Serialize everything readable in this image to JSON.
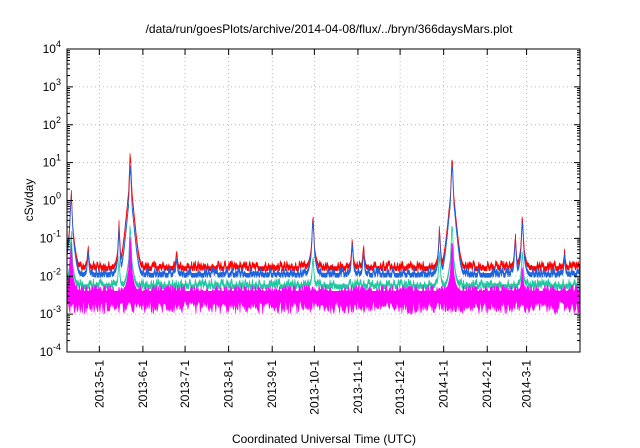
{
  "chart_data": {
    "type": "line",
    "title": "/data/run/goesPlots/archive/2014-04-08/flux/../bryn/366daysMars.plot",
    "xlabel": "Coordinated Universal Time (UTC)",
    "ylabel": "cSv/day",
    "yscale": "log",
    "ylim": [
      0.0001,
      10000
    ],
    "y_ticks": [
      {
        "base": "10",
        "exp": "-4",
        "value": 0.0001
      },
      {
        "base": "10",
        "exp": "-3",
        "value": 0.001
      },
      {
        "base": "10",
        "exp": "-2",
        "value": 0.01
      },
      {
        "base": "10",
        "exp": "-1",
        "value": 0.1
      },
      {
        "base": "10",
        "exp": "0",
        "value": 1
      },
      {
        "base": "10",
        "exp": "1",
        "value": 10
      },
      {
        "base": "10",
        "exp": "2",
        "value": 100
      },
      {
        "base": "10",
        "exp": "3",
        "value": 1000
      },
      {
        "base": "10",
        "exp": "4",
        "value": 10000
      }
    ],
    "xlim": [
      "2013-04-08",
      "2014-04-08"
    ],
    "x_ticks": [
      "2013-5-1",
      "2013-6-1",
      "2013-7-1",
      "2013-8-1",
      "2013-9-1",
      "2013-10-1",
      "2013-11-1",
      "2013-12-1",
      "2014-1-1",
      "2014-2-1",
      "2014-3-1"
    ],
    "x_tick_dates": [
      "2013-05-01",
      "2013-06-01",
      "2013-07-01",
      "2013-08-01",
      "2013-09-01",
      "2013-10-01",
      "2013-11-01",
      "2013-12-01",
      "2014-01-01",
      "2014-02-01",
      "2014-03-01"
    ],
    "grid": true,
    "series": [
      {
        "color": "#ff0000",
        "baseline": 0.018,
        "peaks": [
          [
            "2013-04-11",
            2.5
          ],
          [
            "2013-04-23",
            0.06
          ],
          [
            "2013-05-15",
            0.3
          ],
          [
            "2013-05-23",
            25
          ],
          [
            "2013-06-25",
            0.045
          ],
          [
            "2013-09-30",
            0.55
          ],
          [
            "2013-10-28",
            0.11
          ],
          [
            "2013-11-05",
            0.07
          ],
          [
            "2013-12-29",
            0.25
          ],
          [
            "2014-01-07",
            20
          ],
          [
            "2014-02-21",
            0.15
          ],
          [
            "2014-02-26",
            0.55
          ],
          [
            "2014-03-28",
            0.04
          ]
        ]
      },
      {
        "color": "#1e64dc",
        "baseline": 0.012,
        "peaks": [
          [
            "2013-04-11",
            2.0
          ],
          [
            "2013-04-23",
            0.045
          ],
          [
            "2013-05-15",
            0.2
          ],
          [
            "2013-05-23",
            12
          ],
          [
            "2013-06-25",
            0.03
          ],
          [
            "2013-09-30",
            0.45
          ],
          [
            "2013-10-28",
            0.09
          ],
          [
            "2013-11-05",
            0.05
          ],
          [
            "2013-12-29",
            0.2
          ],
          [
            "2014-01-07",
            14
          ],
          [
            "2014-02-21",
            0.12
          ],
          [
            "2014-02-26",
            0.4
          ],
          [
            "2014-03-28",
            0.03
          ]
        ]
      },
      {
        "color": "#22c8a0",
        "baseline": 0.006,
        "peaks": [
          [
            "2013-04-11",
            0.2
          ],
          [
            "2013-05-15",
            0.03
          ],
          [
            "2013-05-23",
            0.3
          ],
          [
            "2013-09-30",
            0.04
          ],
          [
            "2013-12-29",
            0.05
          ],
          [
            "2014-01-07",
            0.35
          ],
          [
            "2014-02-26",
            0.06
          ]
        ]
      },
      {
        "color": "#ff00ff",
        "baseline": 0.004,
        "peaks": [
          [
            "2013-04-11",
            0.1
          ],
          [
            "2013-05-23",
            0.15
          ],
          [
            "2014-01-07",
            0.12
          ],
          [
            "2014-02-26",
            0.02
          ]
        ]
      }
    ]
  }
}
